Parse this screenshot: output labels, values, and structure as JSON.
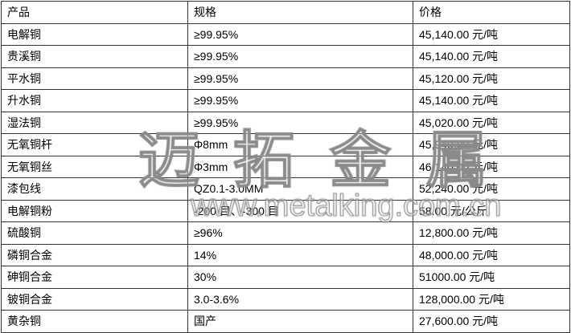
{
  "headers": [
    "产品",
    "规格",
    "价格"
  ],
  "rows": [
    [
      "电解铜",
      "≥99.95%",
      "45,140.00 元/吨"
    ],
    [
      "贵溪铜",
      "≥99.95%",
      "45,140.00 元/吨"
    ],
    [
      "平水铜",
      "≥99.95%",
      "45,120.00 元/吨"
    ],
    [
      "升水铜",
      "≥99.95%",
      "45,140.00 元/吨"
    ],
    [
      "湿法铜",
      "≥99.95%",
      "45,020.00 元/吨"
    ],
    [
      "无氧铜杆",
      "Φ8mm",
      "45,940.00 元/吨"
    ],
    [
      "无氧铜丝",
      "Φ3mm",
      "46,140.00 元/吨"
    ],
    [
      "漆包线",
      "QZ0.1-3.0MM",
      "52,240.00 元/吨"
    ],
    [
      "电解铜粉",
      "-200 目、-300 目",
      "58.00 元/公斤"
    ],
    [
      "硫酸铜",
      "≥96%",
      "12,800.00 元/吨"
    ],
    [
      "磷铜合金",
      "14%",
      "48,000.00 元/吨"
    ],
    [
      "砷铜合金",
      "30%",
      "51000.00 元/吨"
    ],
    [
      "铍铜合金",
      "3.0-3.6%",
      "128,000.00 元/吨"
    ],
    [
      "黄杂铜",
      "国产",
      "27,600.00 元/吨"
    ]
  ],
  "watermark": {
    "title": "迈拓金属",
    "url": "www.metalking.com.cn"
  }
}
